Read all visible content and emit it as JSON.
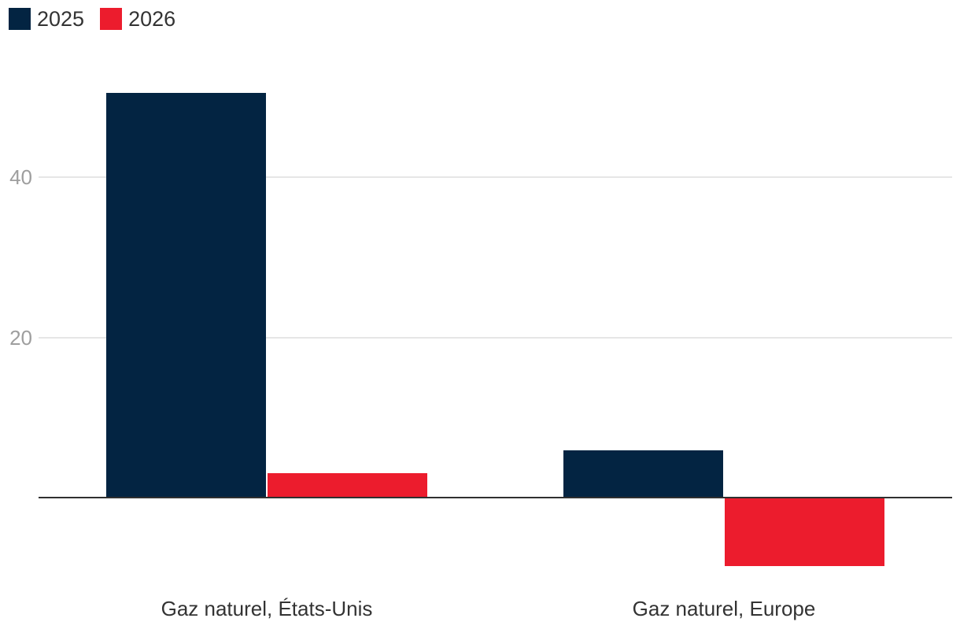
{
  "colors": {
    "series_2025": "#032442",
    "series_2026": "#ec1c2d",
    "axis_line": "#303030",
    "gridline": "#e6e6e6",
    "tick_label": "#9e9e9e",
    "category_label": "#333333",
    "background": "#ffffff"
  },
  "chart_data": {
    "type": "bar",
    "categories": [
      "Gaz naturel, États-Unis",
      "Gaz naturel, Europe"
    ],
    "series": [
      {
        "name": "2025",
        "color": "#032442",
        "values": [
          50.4,
          5.9
        ]
      },
      {
        "name": "2026",
        "color": "#ec1c2d",
        "values": [
          3.1,
          -8.4
        ]
      }
    ],
    "yticks": [
      20,
      40
    ],
    "ylim": [
      -10,
      55
    ],
    "grid": true,
    "legend_position": "top-left",
    "title": "",
    "xlabel": "",
    "ylabel": ""
  }
}
